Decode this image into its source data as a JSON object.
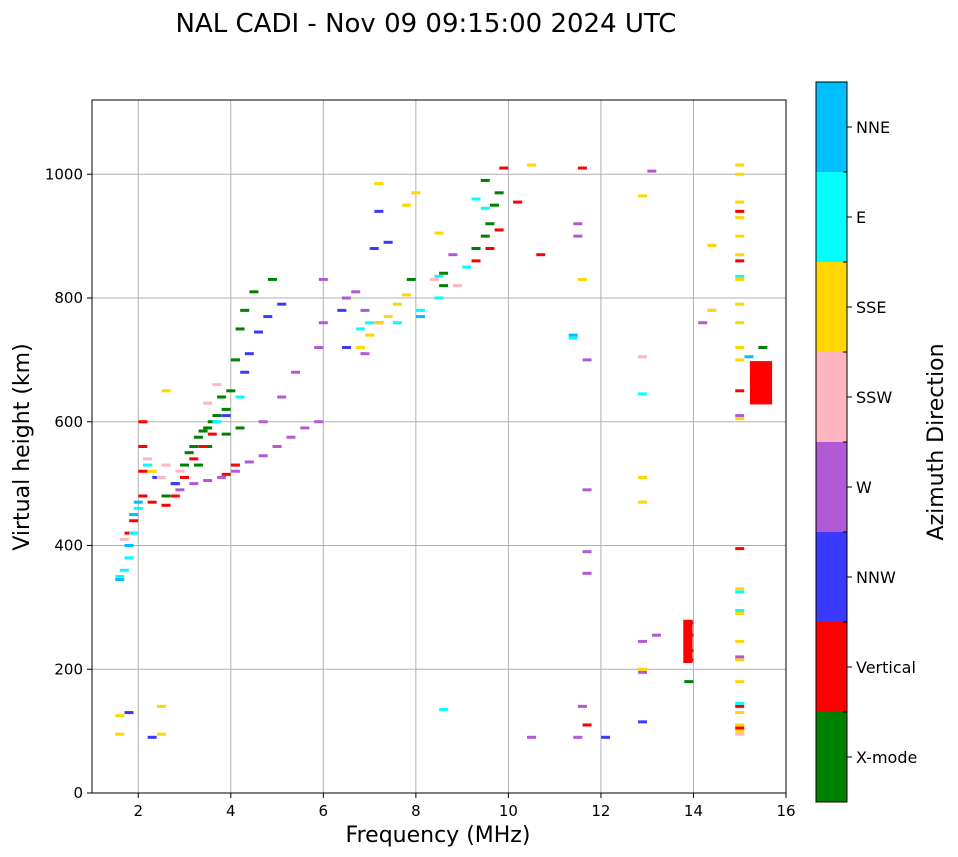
{
  "chart_data": {
    "type": "scatter",
    "title": "NAL CADI - Nov 09 09:15:00 2024 UTC",
    "xlabel": "Frequency (MHz)",
    "ylabel": "Virtual height (km)",
    "xlim": [
      1.0,
      16.0
    ],
    "ylim": [
      0,
      1120
    ],
    "xticks": [
      2,
      4,
      6,
      8,
      10,
      12,
      14,
      16
    ],
    "yticks": [
      0,
      200,
      400,
      600,
      800,
      1000
    ],
    "grid": true,
    "colorbar": {
      "label": "Azimuth Direction",
      "categories": [
        {
          "name": "X-mode",
          "color": "#008000"
        },
        {
          "name": "Vertical",
          "color": "#ff0000"
        },
        {
          "name": "NNW",
          "color": "#3a3aff"
        },
        {
          "name": "W",
          "color": "#b25ad6"
        },
        {
          "name": "SSW",
          "color": "#ffb6c1"
        },
        {
          "name": "SSE",
          "color": "#ffd700"
        },
        {
          "name": "E",
          "color": "#00ffff"
        },
        {
          "name": "NNE",
          "color": "#00bfff"
        }
      ]
    },
    "series": [
      {
        "name": "X-mode",
        "points": [
          [
            2.6,
            480
          ],
          [
            2.8,
            500
          ],
          [
            3.0,
            530
          ],
          [
            3.1,
            550
          ],
          [
            3.2,
            560
          ],
          [
            3.3,
            575
          ],
          [
            3.4,
            585
          ],
          [
            3.5,
            590
          ],
          [
            3.6,
            600
          ],
          [
            3.7,
            610
          ],
          [
            3.9,
            620
          ],
          [
            4.0,
            650
          ],
          [
            4.1,
            700
          ],
          [
            4.2,
            750
          ],
          [
            4.3,
            780
          ],
          [
            3.8,
            640
          ],
          [
            4.5,
            810
          ],
          [
            4.9,
            830
          ],
          [
            7.9,
            830
          ],
          [
            8.6,
            820
          ],
          [
            8.6,
            840
          ],
          [
            9.3,
            880
          ],
          [
            9.5,
            900
          ],
          [
            9.6,
            920
          ],
          [
            9.7,
            950
          ],
          [
            9.8,
            970
          ],
          [
            9.5,
            990
          ],
          [
            13.9,
            180
          ],
          [
            13.9,
            230
          ],
          [
            15.5,
            720
          ],
          [
            3.3,
            530
          ],
          [
            3.5,
            560
          ],
          [
            3.9,
            580
          ],
          [
            4.2,
            590
          ]
        ]
      },
      {
        "name": "Vertical",
        "points": [
          [
            1.8,
            420
          ],
          [
            1.9,
            440
          ],
          [
            2.1,
            480
          ],
          [
            2.1,
            520
          ],
          [
            2.1,
            560
          ],
          [
            2.1,
            600
          ],
          [
            2.3,
            470
          ],
          [
            2.6,
            465
          ],
          [
            2.8,
            480
          ],
          [
            3.0,
            510
          ],
          [
            3.2,
            540
          ],
          [
            3.4,
            560
          ],
          [
            3.6,
            580
          ],
          [
            3.9,
            515
          ],
          [
            4.1,
            530
          ],
          [
            9.3,
            860
          ],
          [
            9.6,
            880
          ],
          [
            9.8,
            910
          ],
          [
            9.9,
            1010
          ],
          [
            10.2,
            955
          ],
          [
            10.7,
            870
          ],
          [
            11.6,
            1010
          ],
          [
            11.7,
            110
          ],
          [
            13.9,
            215
          ],
          [
            13.9,
            255
          ],
          [
            13.9,
            275
          ],
          [
            15.0,
            395
          ],
          [
            15.0,
            650
          ],
          [
            15.0,
            860
          ],
          [
            15.0,
            940
          ],
          [
            15.0,
            105
          ],
          [
            15.0,
            140
          ]
        ]
      },
      {
        "name": "NNW",
        "points": [
          [
            1.8,
            130
          ],
          [
            2.3,
            90
          ],
          [
            2.4,
            510
          ],
          [
            2.8,
            500
          ],
          [
            3.9,
            610
          ],
          [
            4.3,
            680
          ],
          [
            4.4,
            710
          ],
          [
            4.6,
            745
          ],
          [
            4.8,
            770
          ],
          [
            5.1,
            790
          ],
          [
            6.4,
            780
          ],
          [
            6.5,
            720
          ],
          [
            7.2,
            940
          ],
          [
            7.4,
            890
          ],
          [
            7.1,
            880
          ],
          [
            12.1,
            90
          ],
          [
            12.9,
            115
          ]
        ]
      },
      {
        "name": "W",
        "points": [
          [
            2.9,
            490
          ],
          [
            3.2,
            500
          ],
          [
            3.5,
            505
          ],
          [
            3.8,
            510
          ],
          [
            4.1,
            520
          ],
          [
            4.4,
            535
          ],
          [
            4.7,
            545
          ],
          [
            5.0,
            560
          ],
          [
            5.3,
            575
          ],
          [
            5.6,
            590
          ],
          [
            5.9,
            600
          ],
          [
            4.7,
            600
          ],
          [
            5.1,
            640
          ],
          [
            5.4,
            680
          ],
          [
            5.9,
            720
          ],
          [
            6.0,
            760
          ],
          [
            6.0,
            830
          ],
          [
            6.5,
            800
          ],
          [
            6.7,
            810
          ],
          [
            6.9,
            780
          ],
          [
            7.2,
            760
          ],
          [
            6.9,
            710
          ],
          [
            8.8,
            870
          ],
          [
            10.5,
            90
          ],
          [
            11.5,
            90
          ],
          [
            11.6,
            140
          ],
          [
            11.7,
            355
          ],
          [
            11.7,
            390
          ],
          [
            11.7,
            490
          ],
          [
            11.7,
            700
          ],
          [
            11.5,
            920
          ],
          [
            11.5,
            900
          ],
          [
            12.9,
            245
          ],
          [
            12.9,
            195
          ],
          [
            13.2,
            255
          ],
          [
            13.1,
            1005
          ],
          [
            14.2,
            760
          ],
          [
            15.0,
            610
          ],
          [
            15.0,
            220
          ]
        ]
      },
      {
        "name": "SSW",
        "points": [
          [
            1.7,
            410
          ],
          [
            2.2,
            540
          ],
          [
            2.5,
            510
          ],
          [
            2.6,
            530
          ],
          [
            2.9,
            520
          ],
          [
            3.5,
            630
          ],
          [
            3.7,
            660
          ],
          [
            8.4,
            830
          ],
          [
            8.9,
            820
          ],
          [
            12.9,
            705
          ],
          [
            15.0,
            95
          ]
        ]
      },
      {
        "name": "SSE",
        "points": [
          [
            1.6,
            95
          ],
          [
            1.6,
            125
          ],
          [
            2.5,
            95
          ],
          [
            2.5,
            140
          ],
          [
            2.3,
            520
          ],
          [
            2.6,
            650
          ],
          [
            6.8,
            720
          ],
          [
            7.0,
            740
          ],
          [
            7.2,
            760
          ],
          [
            7.4,
            770
          ],
          [
            7.6,
            790
          ],
          [
            7.8,
            805
          ],
          [
            7.2,
            985
          ],
          [
            7.8,
            950
          ],
          [
            8.0,
            970
          ],
          [
            8.5,
            905
          ],
          [
            10.5,
            1015
          ],
          [
            11.6,
            830
          ],
          [
            12.9,
            470
          ],
          [
            12.9,
            510
          ],
          [
            12.9,
            200
          ],
          [
            12.9,
            965
          ],
          [
            14.4,
            885
          ],
          [
            14.4,
            780
          ],
          [
            15.0,
            100
          ],
          [
            15.0,
            110
          ],
          [
            15.0,
            130
          ],
          [
            15.0,
            180
          ],
          [
            15.0,
            215
          ],
          [
            15.0,
            245
          ],
          [
            15.0,
            290
          ],
          [
            15.0,
            330
          ],
          [
            15.0,
            605
          ],
          [
            15.0,
            700
          ],
          [
            15.0,
            720
          ],
          [
            15.0,
            760
          ],
          [
            15.0,
            790
          ],
          [
            15.0,
            830
          ],
          [
            15.0,
            870
          ],
          [
            15.0,
            900
          ],
          [
            15.0,
            930
          ],
          [
            15.0,
            955
          ],
          [
            15.0,
            1000
          ],
          [
            15.0,
            1015
          ]
        ]
      },
      {
        "name": "E",
        "points": [
          [
            1.6,
            350
          ],
          [
            1.7,
            360
          ],
          [
            1.8,
            380
          ],
          [
            1.9,
            420
          ],
          [
            2.0,
            460
          ],
          [
            2.2,
            530
          ],
          [
            3.7,
            600
          ],
          [
            4.2,
            640
          ],
          [
            6.8,
            750
          ],
          [
            7.0,
            760
          ],
          [
            7.6,
            760
          ],
          [
            8.1,
            780
          ],
          [
            8.5,
            800
          ],
          [
            8.5,
            835
          ],
          [
            9.1,
            850
          ],
          [
            9.3,
            960
          ],
          [
            9.5,
            945
          ],
          [
            8.6,
            135
          ],
          [
            11.4,
            735
          ],
          [
            12.9,
            645
          ],
          [
            15.0,
            295
          ],
          [
            15.0,
            325
          ],
          [
            15.0,
            835
          ],
          [
            15.0,
            145
          ]
        ]
      },
      {
        "name": "NNE",
        "points": [
          [
            1.6,
            345
          ],
          [
            1.8,
            400
          ],
          [
            1.9,
            450
          ],
          [
            2.0,
            470
          ],
          [
            8.1,
            770
          ],
          [
            15.2,
            705
          ],
          [
            11.4,
            740
          ]
        ]
      }
    ],
    "blocks": [
      {
        "name": "Vertical",
        "x": [
          15.22,
          15.7
        ],
        "y": [
          628,
          698
        ]
      },
      {
        "name": "Vertical",
        "x": [
          13.78,
          13.98
        ],
        "y": [
          210,
          280
        ]
      }
    ]
  }
}
